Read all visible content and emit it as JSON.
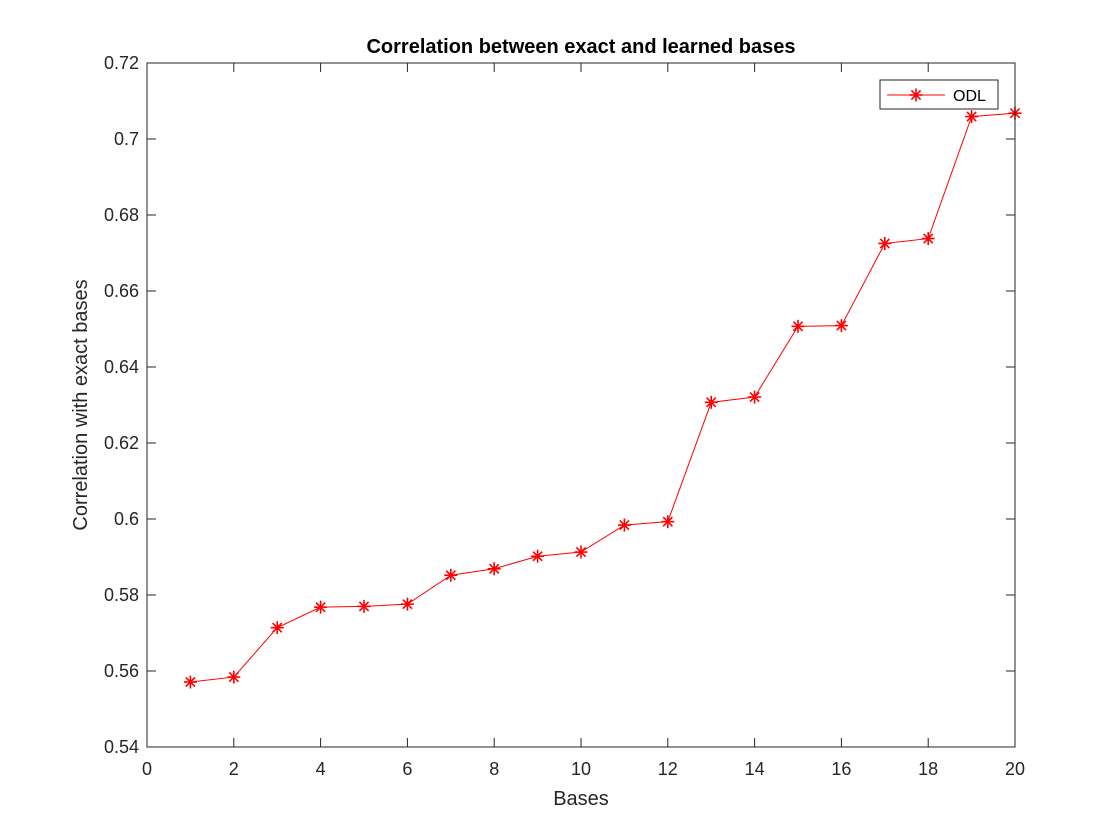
{
  "chart_data": {
    "type": "line",
    "title": "Correlation between exact and learned bases",
    "xlabel": "Bases",
    "ylabel": "Correlation with exact bases",
    "xlim": [
      0,
      20
    ],
    "ylim": [
      0.54,
      0.72
    ],
    "xticks": [
      "0",
      "2",
      "4",
      "6",
      "8",
      "10",
      "12",
      "14",
      "16",
      "18",
      "20"
    ],
    "yticks": [
      "0.54",
      "0.56",
      "0.58",
      "0.6",
      "0.62",
      "0.64",
      "0.66",
      "0.68",
      "0.7",
      "0.72"
    ],
    "grid": false,
    "legend_position": "top-right",
    "series": [
      {
        "name": "ODL",
        "color": "#ff0000",
        "marker": "asterisk",
        "x": [
          1,
          2,
          3,
          4,
          5,
          6,
          7,
          8,
          9,
          10,
          11,
          12,
          13,
          14,
          15,
          16,
          17,
          18,
          19,
          20
        ],
        "values": [
          0.5571,
          0.5584,
          0.5714,
          0.5768,
          0.577,
          0.5776,
          0.5852,
          0.5869,
          0.5902,
          0.5913,
          0.5984,
          0.5993,
          0.6307,
          0.6321,
          0.6507,
          0.6509,
          0.6725,
          0.6738,
          0.7059,
          0.7068
        ]
      }
    ]
  }
}
